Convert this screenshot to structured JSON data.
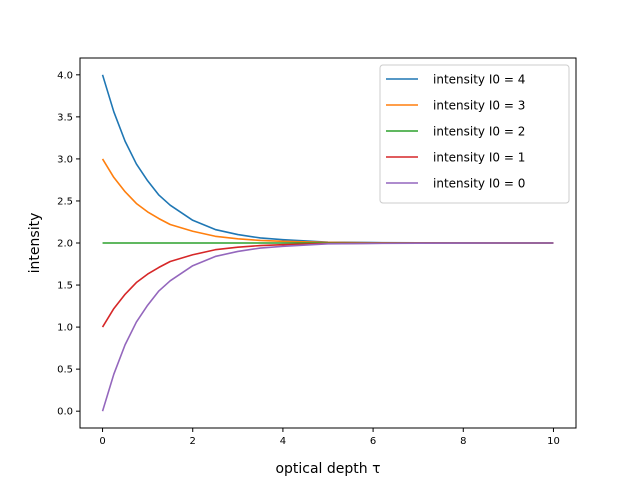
{
  "chart_data": {
    "type": "line",
    "title": "",
    "xlabel": "optical depth τ",
    "ylabel": "intensity",
    "xlim": [
      -0.5,
      10.5
    ],
    "ylim": [
      -0.2,
      4.2
    ],
    "xticks": [
      0,
      2,
      4,
      6,
      8,
      10
    ],
    "yticks": [
      0.0,
      0.5,
      1.0,
      1.5,
      2.0,
      2.5,
      3.0,
      3.5,
      4.0
    ],
    "x": [
      0,
      0.25,
      0.5,
      0.75,
      1,
      1.25,
      1.5,
      2,
      2.5,
      3,
      3.5,
      4,
      5,
      6,
      7,
      8,
      9,
      10
    ],
    "series": [
      {
        "name": "intensity I0 = 4",
        "color": "#1f77b4",
        "values": [
          4.0,
          3.56,
          3.21,
          2.94,
          2.74,
          2.57,
          2.45,
          2.27,
          2.16,
          2.1,
          2.06,
          2.04,
          2.01,
          2.005,
          2.002,
          2.001,
          2.0,
          2.0
        ]
      },
      {
        "name": "intensity I0 = 3",
        "color": "#ff7f0e",
        "values": [
          3.0,
          2.78,
          2.61,
          2.47,
          2.37,
          2.29,
          2.22,
          2.14,
          2.08,
          2.05,
          2.03,
          2.02,
          2.007,
          2.002,
          2.001,
          2.0,
          2.0,
          2.0
        ]
      },
      {
        "name": "intensity I0 = 2",
        "color": "#2ca02c",
        "values": [
          2.0,
          2.0,
          2.0,
          2.0,
          2.0,
          2.0,
          2.0,
          2.0,
          2.0,
          2.0,
          2.0,
          2.0,
          2.0,
          2.0,
          2.0,
          2.0,
          2.0,
          2.0
        ]
      },
      {
        "name": "intensity I0 = 1",
        "color": "#d62728",
        "values": [
          1.0,
          1.22,
          1.39,
          1.53,
          1.63,
          1.71,
          1.78,
          1.86,
          1.92,
          1.95,
          1.97,
          1.98,
          1.993,
          1.998,
          1.999,
          2.0,
          2.0,
          2.0
        ]
      },
      {
        "name": "intensity I0 = 0",
        "color": "#9467bd",
        "values": [
          0.0,
          0.44,
          0.79,
          1.06,
          1.26,
          1.43,
          1.55,
          1.73,
          1.84,
          1.9,
          1.94,
          1.96,
          1.99,
          1.995,
          1.998,
          1.999,
          2.0,
          2.0
        ]
      }
    ],
    "grid": false,
    "legend_position": "top-right"
  }
}
